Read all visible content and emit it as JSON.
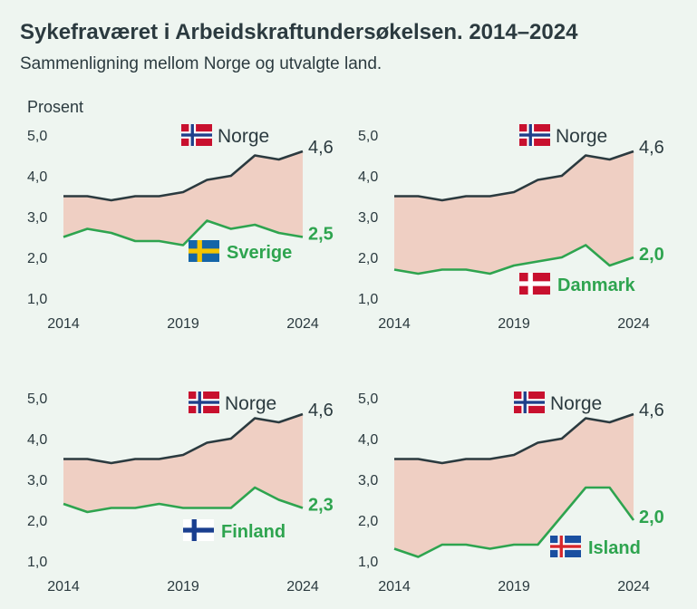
{
  "title": "Sykefraværet i Arbeidskraftundersøkelsen. 2014–2024",
  "subtitle": "Sammenligning mellom Norge og utvalgte land.",
  "colors": {
    "norge": "#2b3a3f",
    "other": "#2ea44f",
    "band": "#efcfc3"
  },
  "chart_data": [
    {
      "type": "line",
      "ylabel": "Prosent",
      "ylim": [
        1,
        5
      ],
      "yticks": [
        "1,0",
        "2,0",
        "3,0",
        "4,0",
        "5,0"
      ],
      "xticks": [
        "2014",
        "2019",
        "2024"
      ],
      "x": [
        2014,
        2015,
        2016,
        2017,
        2018,
        2019,
        2020,
        2021,
        2022,
        2023,
        2024
      ],
      "series": [
        {
          "name": "Norge",
          "flag": "norway-flag",
          "end_label": "4,6",
          "values": [
            3.5,
            3.5,
            3.4,
            3.5,
            3.5,
            3.6,
            3.9,
            4.0,
            4.5,
            4.4,
            4.6
          ]
        },
        {
          "name": "Sverige",
          "flag": "sweden-flag",
          "end_label": "2,5",
          "values": [
            2.5,
            2.7,
            2.6,
            2.4,
            2.4,
            2.3,
            2.9,
            2.7,
            2.8,
            2.6,
            2.5
          ]
        }
      ]
    },
    {
      "type": "line",
      "ylabel": "",
      "ylim": [
        1,
        5
      ],
      "yticks": [
        "1,0",
        "2,0",
        "3,0",
        "4,0",
        "5,0"
      ],
      "xticks": [
        "2014",
        "2019",
        "2024"
      ],
      "x": [
        2014,
        2015,
        2016,
        2017,
        2018,
        2019,
        2020,
        2021,
        2022,
        2023,
        2024
      ],
      "series": [
        {
          "name": "Norge",
          "flag": "norway-flag",
          "end_label": "4,6",
          "values": [
            3.5,
            3.5,
            3.4,
            3.5,
            3.5,
            3.6,
            3.9,
            4.0,
            4.5,
            4.4,
            4.6
          ]
        },
        {
          "name": "Danmark",
          "flag": "denmark-flag",
          "end_label": "2,0",
          "values": [
            1.7,
            1.6,
            1.7,
            1.7,
            1.6,
            1.8,
            1.9,
            2.0,
            2.3,
            1.8,
            2.0
          ]
        }
      ]
    },
    {
      "type": "line",
      "ylabel": "",
      "ylim": [
        1,
        5
      ],
      "yticks": [
        "1,0",
        "2,0",
        "3,0",
        "4,0",
        "5,0"
      ],
      "xticks": [
        "2014",
        "2019",
        "2024"
      ],
      "x": [
        2014,
        2015,
        2016,
        2017,
        2018,
        2019,
        2020,
        2021,
        2022,
        2023,
        2024
      ],
      "series": [
        {
          "name": "Norge",
          "flag": "norway-flag",
          "end_label": "4,6",
          "values": [
            3.5,
            3.5,
            3.4,
            3.5,
            3.5,
            3.6,
            3.9,
            4.0,
            4.5,
            4.4,
            4.6
          ]
        },
        {
          "name": "Finland",
          "flag": "finland-flag",
          "end_label": "2,3",
          "values": [
            2.4,
            2.2,
            2.3,
            2.3,
            2.4,
            2.3,
            2.3,
            2.3,
            2.8,
            2.5,
            2.3
          ]
        }
      ]
    },
    {
      "type": "line",
      "ylabel": "",
      "ylim": [
        1,
        5
      ],
      "yticks": [
        "1,0",
        "2,0",
        "3,0",
        "4,0",
        "5,0"
      ],
      "xticks": [
        "2014",
        "2019",
        "2024"
      ],
      "x": [
        2014,
        2015,
        2016,
        2017,
        2018,
        2019,
        2020,
        2021,
        2022,
        2023,
        2024
      ],
      "series": [
        {
          "name": "Norge",
          "flag": "norway-flag",
          "end_label": "4,6",
          "values": [
            3.5,
            3.5,
            3.4,
            3.5,
            3.5,
            3.6,
            3.9,
            4.0,
            4.5,
            4.4,
            4.6
          ]
        },
        {
          "name": "Island",
          "flag": "iceland-flag",
          "end_label": "2,0",
          "values": [
            1.3,
            1.1,
            1.4,
            1.4,
            1.3,
            1.4,
            1.4,
            2.1,
            2.8,
            2.8,
            2.0
          ]
        }
      ]
    }
  ]
}
